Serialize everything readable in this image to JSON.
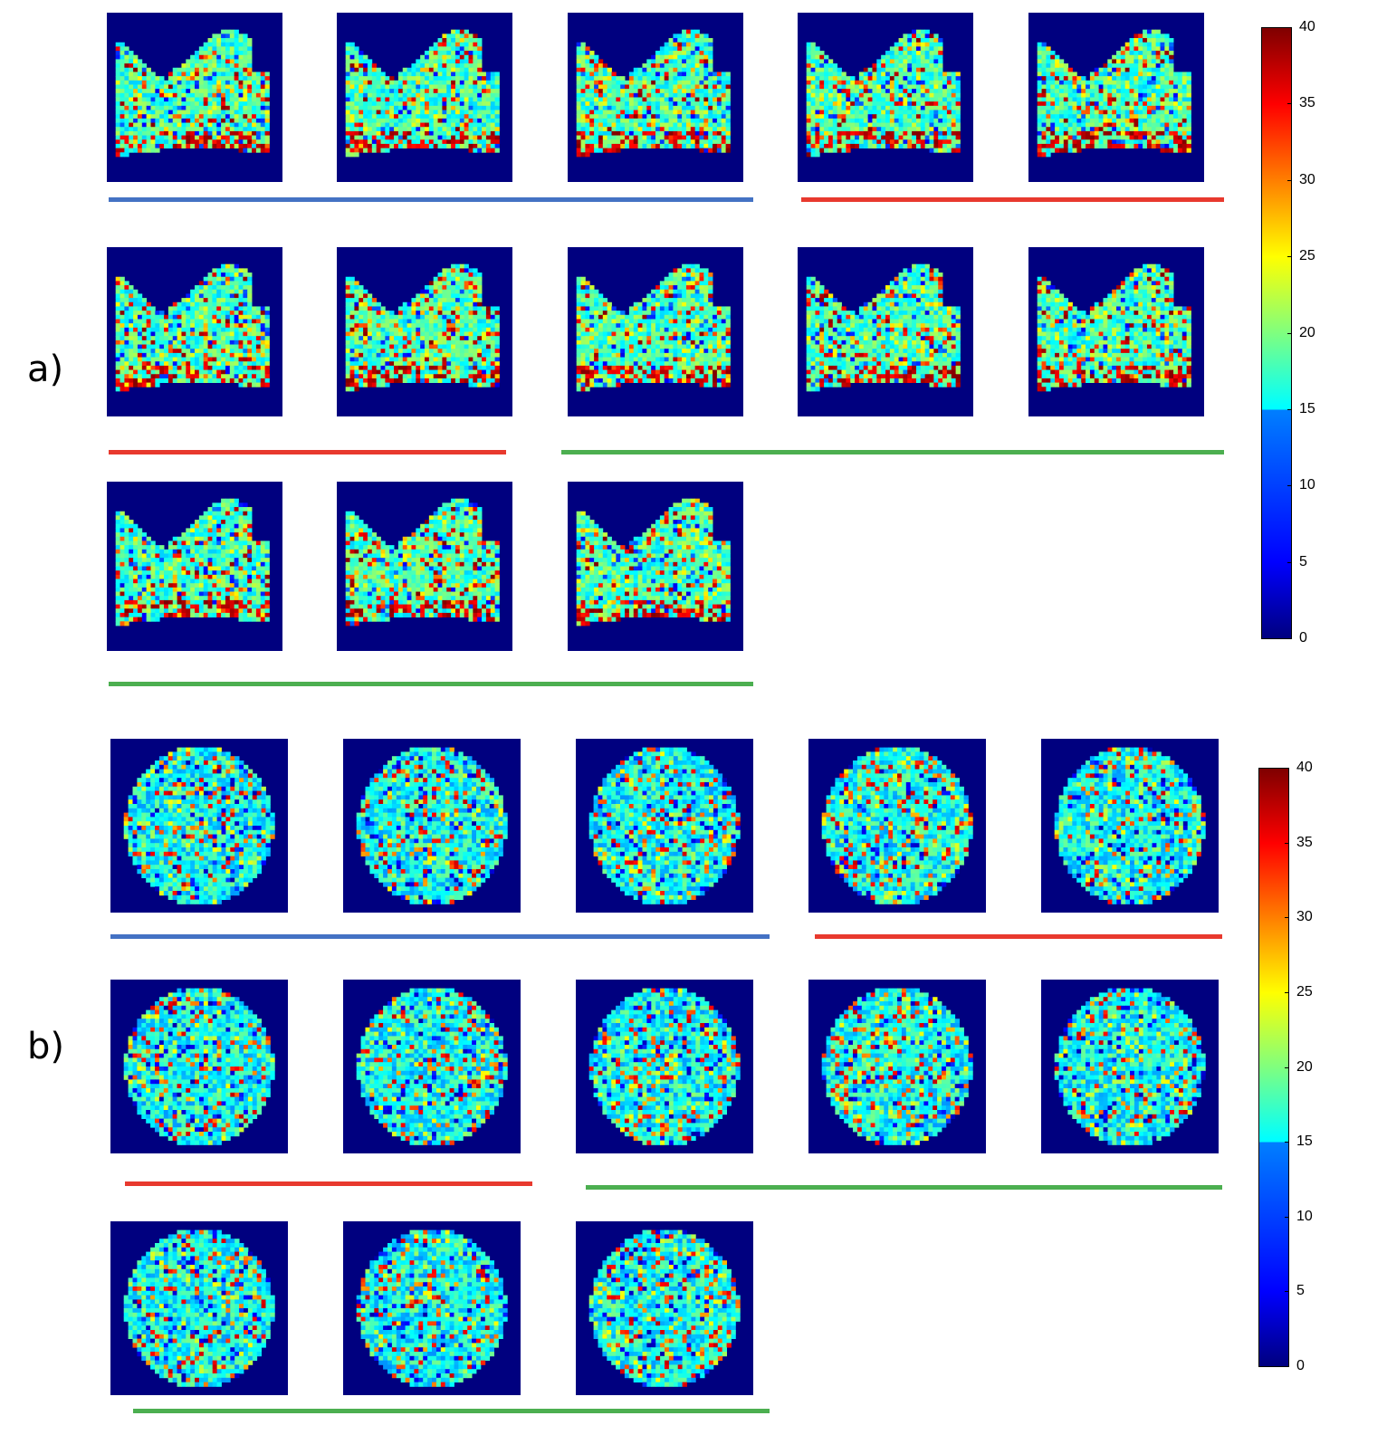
{
  "figure": {
    "sections": [
      {
        "id": "a",
        "label": "a)",
        "panel_count": 13,
        "colorbar": {
          "ticks": [
            "40",
            "35",
            "30",
            "25",
            "20",
            "15",
            "10",
            "5",
            "0"
          ],
          "min": 0,
          "max": 40
        }
      },
      {
        "id": "b",
        "label": "b)",
        "panel_count": 13,
        "colorbar": {
          "ticks": [
            "40",
            "35",
            "30",
            "25",
            "20",
            "15",
            "10",
            "5",
            "0"
          ],
          "min": 0,
          "max": 40
        }
      }
    ],
    "group_colors": {
      "blue": "#4472c4",
      "red": "#e8392e",
      "green": "#4caf50"
    },
    "colormap": "jet",
    "background_color": "#00007f"
  }
}
